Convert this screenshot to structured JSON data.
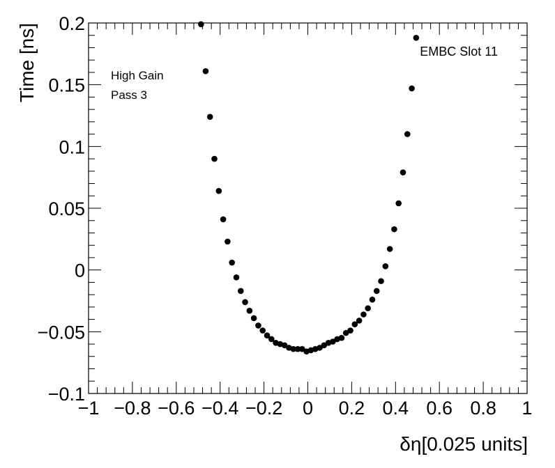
{
  "chart_data": {
    "type": "scatter",
    "xlabel": "δη[0.025 units]",
    "ylabel": "Time [ns]",
    "xlim": [
      -1,
      1
    ],
    "ylim": [
      -0.1,
      0.2
    ],
    "x_ticks": [
      -1,
      -0.8,
      -0.6,
      -0.4,
      -0.2,
      0,
      0.2,
      0.4,
      0.6,
      0.8,
      1
    ],
    "x_tick_labels": [
      "−1",
      "−0.8",
      "−0.6",
      "−0.4",
      "−0.2",
      "0",
      "0.2",
      "0.4",
      "0.6",
      "0.8",
      "1"
    ],
    "y_ticks": [
      -0.1,
      -0.05,
      0,
      0.05,
      0.1,
      0.15,
      0.2
    ],
    "y_tick_labels": [
      "−0.1",
      "−0.05",
      "0",
      "0.05",
      "0.1",
      "0.15",
      "0.2"
    ],
    "grid": false,
    "marker_color": "#000000",
    "annotations": {
      "gain": "High Gain",
      "pass": "Pass 3",
      "slot": "EMBC Slot 11"
    },
    "points": [
      {
        "x": -0.487,
        "y": 0.199
      },
      {
        "x": -0.466,
        "y": 0.161
      },
      {
        "x": -0.446,
        "y": 0.124
      },
      {
        "x": -0.426,
        "y": 0.09
      },
      {
        "x": -0.406,
        "y": 0.064
      },
      {
        "x": -0.386,
        "y": 0.041
      },
      {
        "x": -0.366,
        "y": 0.023
      },
      {
        "x": -0.346,
        "y": 0.006
      },
      {
        "x": -0.326,
        "y": -0.006
      },
      {
        "x": -0.306,
        "y": -0.017
      },
      {
        "x": -0.286,
        "y": -0.026
      },
      {
        "x": -0.266,
        "y": -0.033
      },
      {
        "x": -0.246,
        "y": -0.039
      },
      {
        "x": -0.226,
        "y": -0.045
      },
      {
        "x": -0.206,
        "y": -0.049
      },
      {
        "x": -0.186,
        "y": -0.053
      },
      {
        "x": -0.166,
        "y": -0.056
      },
      {
        "x": -0.146,
        "y": -0.059
      },
      {
        "x": -0.126,
        "y": -0.06
      },
      {
        "x": -0.106,
        "y": -0.061
      },
      {
        "x": -0.086,
        "y": -0.063
      },
      {
        "x": -0.066,
        "y": -0.064
      },
      {
        "x": -0.046,
        "y": -0.064
      },
      {
        "x": -0.026,
        "y": -0.064
      },
      {
        "x": -0.006,
        "y": -0.066
      },
      {
        "x": 0.014,
        "y": -0.065
      },
      {
        "x": 0.034,
        "y": -0.064
      },
      {
        "x": 0.054,
        "y": -0.063
      },
      {
        "x": 0.074,
        "y": -0.061
      },
      {
        "x": 0.094,
        "y": -0.059
      },
      {
        "x": 0.114,
        "y": -0.058
      },
      {
        "x": 0.134,
        "y": -0.056
      },
      {
        "x": 0.154,
        "y": -0.055
      },
      {
        "x": 0.174,
        "y": -0.051
      },
      {
        "x": 0.194,
        "y": -0.049
      },
      {
        "x": 0.214,
        "y": -0.044
      },
      {
        "x": 0.234,
        "y": -0.041
      },
      {
        "x": 0.254,
        "y": -0.036
      },
      {
        "x": 0.274,
        "y": -0.031
      },
      {
        "x": 0.294,
        "y": -0.024
      },
      {
        "x": 0.314,
        "y": -0.017
      },
      {
        "x": 0.334,
        "y": -0.009
      },
      {
        "x": 0.354,
        "y": 0.003
      },
      {
        "x": 0.374,
        "y": 0.017
      },
      {
        "x": 0.394,
        "y": 0.033
      },
      {
        "x": 0.414,
        "y": 0.054
      },
      {
        "x": 0.434,
        "y": 0.079
      },
      {
        "x": 0.454,
        "y": 0.11
      },
      {
        "x": 0.474,
        "y": 0.147
      },
      {
        "x": 0.494,
        "y": 0.188
      }
    ]
  }
}
